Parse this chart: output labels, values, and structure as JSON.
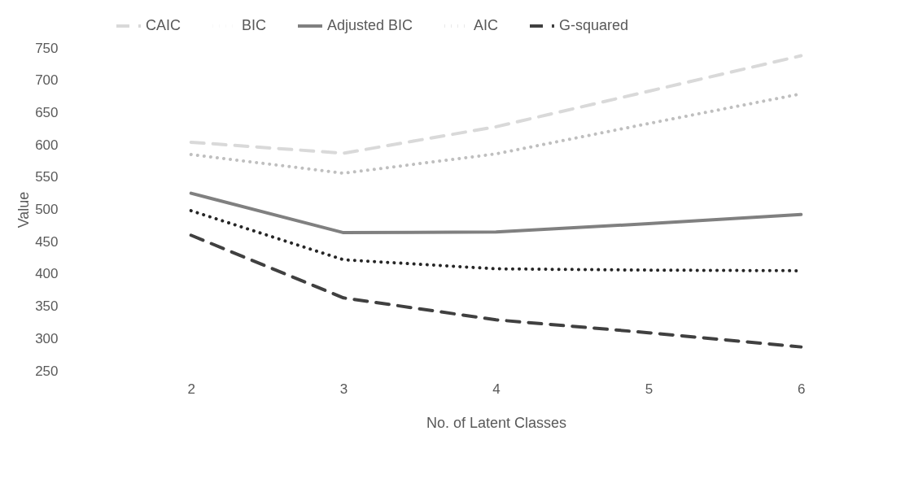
{
  "chart_data": {
    "type": "line",
    "xlabel": "No. of Latent Classes",
    "ylabel": "Value",
    "categories": [
      "2",
      "3",
      "4",
      "5",
      "6"
    ],
    "series": [
      {
        "name": "CAIC",
        "color": "#d9d9d9",
        "line_style": "dashed",
        "values": [
          604,
          587,
          628,
          683,
          738
        ]
      },
      {
        "name": "BIC",
        "color": "#bfbfbf",
        "line_style": "dotted",
        "values": [
          585,
          556,
          586,
          633,
          679
        ]
      },
      {
        "name": "Adjusted BIC",
        "color": "#808080",
        "line_style": "solid",
        "values": [
          525,
          464,
          465,
          478,
          492
        ]
      },
      {
        "name": "AIC",
        "color": "#262626",
        "line_style": "dotted",
        "values": [
          498,
          422,
          408,
          406,
          405
        ]
      },
      {
        "name": "G-squared",
        "color": "#404040",
        "line_style": "dashed",
        "values": [
          460,
          363,
          329,
          309,
          287
        ]
      }
    ],
    "ylim": [
      250,
      750
    ],
    "yticks": [
      250,
      300,
      350,
      400,
      450,
      500,
      550,
      600,
      650,
      700,
      750
    ],
    "grid": false,
    "legend": "top",
    "marker": "none"
  }
}
